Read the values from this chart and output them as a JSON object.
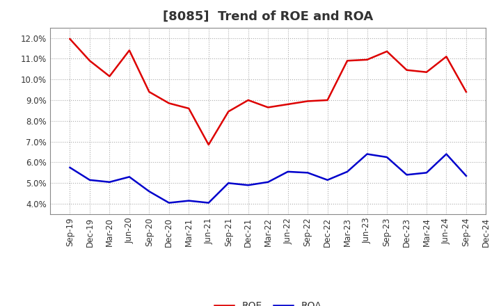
{
  "title": "[8085]  Trend of ROE and ROA",
  "x_labels": [
    "Sep-19",
    "Dec-19",
    "Mar-20",
    "Jun-20",
    "Sep-20",
    "Dec-20",
    "Mar-21",
    "Jun-21",
    "Sep-21",
    "Dec-21",
    "Mar-22",
    "Jun-22",
    "Sep-22",
    "Dec-22",
    "Mar-23",
    "Jun-23",
    "Sep-23",
    "Dec-23",
    "Mar-24",
    "Jun-24",
    "Sep-24",
    "Dec-24"
  ],
  "roe": [
    11.95,
    10.9,
    10.15,
    11.4,
    9.4,
    8.85,
    8.6,
    6.85,
    8.45,
    9.0,
    8.65,
    8.8,
    8.95,
    9.0,
    10.9,
    10.95,
    11.35,
    10.45,
    10.35,
    11.1,
    9.4,
    null
  ],
  "roa": [
    5.75,
    5.15,
    5.05,
    5.3,
    4.6,
    4.05,
    4.15,
    4.05,
    5.0,
    4.9,
    5.05,
    5.55,
    5.5,
    5.15,
    5.55,
    6.4,
    6.25,
    5.4,
    5.5,
    6.4,
    5.35,
    null
  ],
  "roe_color": "#dd0000",
  "roa_color": "#0000cc",
  "background_color": "#ffffff",
  "grid_color": "#aaaaaa",
  "title_color": "#333333",
  "ylim": [
    3.5,
    12.5
  ],
  "yticks": [
    4.0,
    5.0,
    6.0,
    7.0,
    8.0,
    9.0,
    10.0,
    11.0,
    12.0
  ],
  "title_fontsize": 13,
  "legend_fontsize": 10,
  "tick_fontsize": 8.5
}
